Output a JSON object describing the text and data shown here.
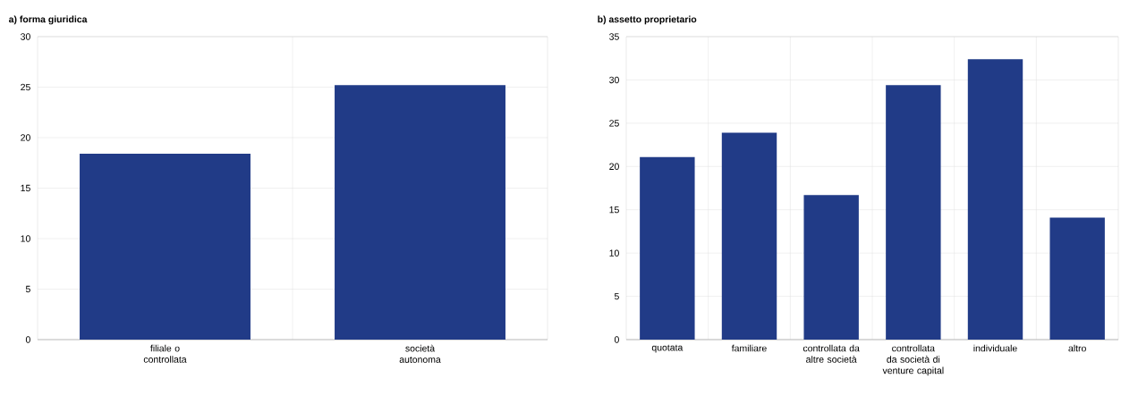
{
  "chart_data": [
    {
      "type": "bar",
      "title": "a) forma giuridica",
      "categories": [
        "filiale o controllata",
        "società autonoma"
      ],
      "values": [
        18.4,
        25.2
      ],
      "color": "#213b87",
      "ylim": [
        0,
        30
      ],
      "yticks": [
        0,
        5,
        10,
        15,
        20,
        25,
        30
      ],
      "grid": true
    },
    {
      "type": "bar",
      "title": "b) assetto proprietario",
      "categories": [
        "quotata",
        "familiare",
        "controllata da altre società",
        "controllata da società di venture capital",
        "individuale",
        "altro"
      ],
      "values": [
        21.1,
        23.9,
        16.7,
        29.4,
        32.4,
        14.1
      ],
      "color": "#213b87",
      "ylim": [
        0,
        35
      ],
      "yticks": [
        0,
        5,
        10,
        15,
        20,
        25,
        30,
        35
      ],
      "grid": true
    }
  ]
}
